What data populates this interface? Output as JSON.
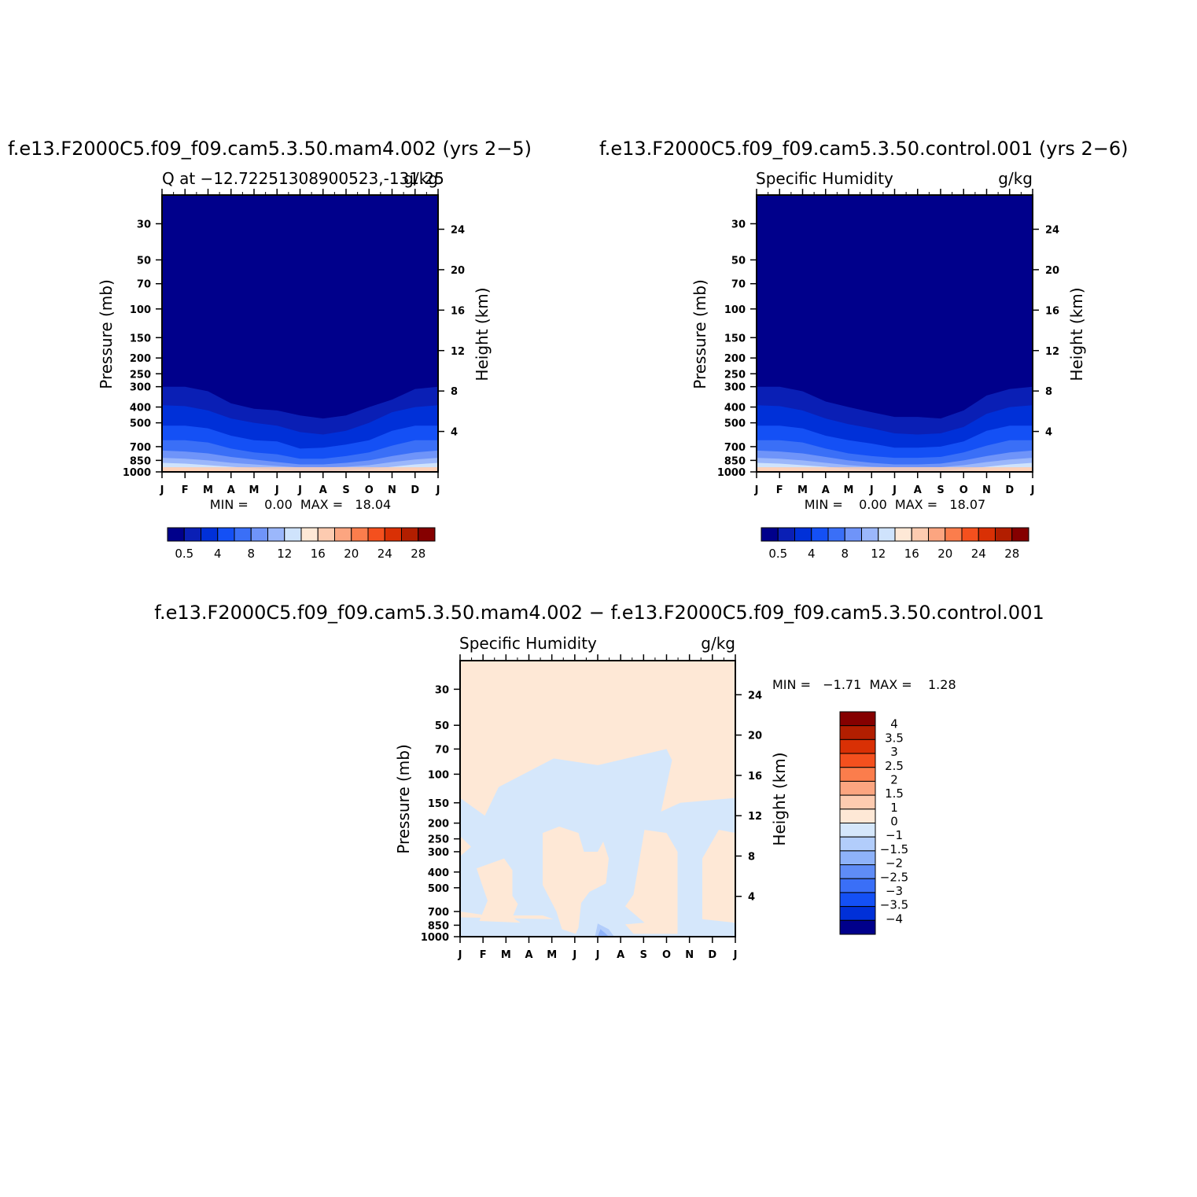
{
  "figure": {
    "top_left_title": "f.e13.F2000C5.f09_f09.cam5.3.50.mam4.002 (yrs 2−5)",
    "top_right_title": "f.e13.F2000C5.f09_f09.cam5.3.50.control.001 (yrs 2−6)",
    "bottom_title": "f.e13.F2000C5.f09_f09.cam5.3.50.mam4.002 − f.e13.F2000C5.f09_f09.cam5.3.50.control.001"
  },
  "panels": {
    "left": {
      "left_string": "Q at −12.72251308900523,-131.25",
      "right_string": "g/kg",
      "ylabel": "Pressure (mb)",
      "y2label": "Height (km)",
      "stats": "MIN =    0.00  MAX =   18.04"
    },
    "right": {
      "left_string": "Specific Humidity",
      "right_string": "g/kg",
      "ylabel": "Pressure (mb)",
      "y2label": "Height (km)",
      "stats": "MIN =    0.00  MAX =   18.07"
    },
    "diff": {
      "left_string": "Specific Humidity",
      "right_string": "g/kg",
      "ylabel": "Pressure (mb)",
      "y2label": "Height (km)",
      "stats": "MIN =   −1.71  MAX =    1.28"
    }
  },
  "chart_data": [
    {
      "type": "heatmap",
      "title": "f.e13.F2000C5.f09_f09.cam5.3.50.mam4.002 (yrs 2−5)",
      "subtitle_left": "Q at −12.72251308900523,-131.25",
      "subtitle_right": "g/kg",
      "xlabel": "",
      "ylabel": "Pressure (mb)",
      "y2label": "Height (km)",
      "x_ticks": [
        "J",
        "F",
        "M",
        "A",
        "M",
        "J",
        "J",
        "A",
        "S",
        "O",
        "N",
        "D",
        "J"
      ],
      "y_ticks": [
        30,
        50,
        70,
        100,
        150,
        200,
        250,
        300,
        400,
        500,
        700,
        850,
        1000
      ],
      "y2_ticks": [
        4,
        8,
        12,
        16,
        20,
        24
      ],
      "ylim": [
        1000,
        20
      ],
      "min": 0.0,
      "max": 18.04,
      "colorbar": {
        "labels": [
          "0.5",
          "4",
          "8",
          "12",
          "16",
          "20",
          "24",
          "28"
        ],
        "colors": [
          "#00008b",
          "#0a1fb5",
          "#0030d8",
          "#1450f5",
          "#3a6ff7",
          "#6f94f9",
          "#9bb7fb",
          "#cfe3fc",
          "#fee8d6",
          "#fdcbb0",
          "#fca580",
          "#fb7d4c",
          "#f4501e",
          "#d93005",
          "#b21e00",
          "#850000"
        ]
      },
      "contour_levels": [
        0.5,
        2,
        4,
        6,
        8,
        10,
        12,
        14
      ],
      "field_note": "isobar pressure (mb) of each specific humidity level by month, J..J",
      "level_pressure": {
        "0.5": [
          300,
          300,
          320,
          380,
          410,
          420,
          450,
          470,
          450,
          400,
          360,
          310,
          300
        ],
        "2": [
          390,
          395,
          420,
          470,
          500,
          520,
          570,
          590,
          560,
          500,
          430,
          400,
          390
        ],
        "4": [
          520,
          520,
          540,
          600,
          640,
          650,
          720,
          710,
          680,
          640,
          560,
          520,
          520
        ],
        "6": [
          640,
          640,
          660,
          720,
          760,
          780,
          830,
          830,
          800,
          760,
          690,
          640,
          640
        ],
        "8": [
          740,
          750,
          770,
          810,
          840,
          870,
          900,
          900,
          880,
          850,
          800,
          760,
          740
        ],
        "10": [
          820,
          830,
          850,
          880,
          900,
          920,
          940,
          940,
          930,
          910,
          870,
          840,
          820
        ],
        "12": [
          880,
          890,
          910,
          930,
          950,
          970,
          985,
          985,
          975,
          960,
          930,
          900,
          880
        ],
        "14": [
          940,
          945,
          955,
          970,
          985,
          1000,
          1000,
          1000,
          1000,
          990,
          965,
          950,
          940
        ]
      }
    },
    {
      "type": "heatmap",
      "title": "f.e13.F2000C5.f09_f09.cam5.3.50.control.001 (yrs 2−6)",
      "subtitle_left": "Specific Humidity",
      "subtitle_right": "g/kg",
      "xlabel": "",
      "ylabel": "Pressure (mb)",
      "y2label": "Height (km)",
      "x_ticks": [
        "J",
        "F",
        "M",
        "A",
        "M",
        "J",
        "J",
        "A",
        "S",
        "O",
        "N",
        "D",
        "J"
      ],
      "y_ticks": [
        30,
        50,
        70,
        100,
        150,
        200,
        250,
        300,
        400,
        500,
        700,
        850,
        1000
      ],
      "y2_ticks": [
        4,
        8,
        12,
        16,
        20,
        24
      ],
      "ylim": [
        1000,
        20
      ],
      "min": 0.0,
      "max": 18.07,
      "colorbar": {
        "labels": [
          "0.5",
          "4",
          "8",
          "12",
          "16",
          "20",
          "24",
          "28"
        ],
        "colors": [
          "#00008b",
          "#0a1fb5",
          "#0030d8",
          "#1450f5",
          "#3a6ff7",
          "#6f94f9",
          "#9bb7fb",
          "#cfe3fc",
          "#fee8d6",
          "#fdcbb0",
          "#fca580",
          "#fb7d4c",
          "#f4501e",
          "#d93005",
          "#b21e00",
          "#850000"
        ]
      },
      "contour_levels": [
        0.5,
        2,
        4,
        6,
        8,
        10,
        12,
        14
      ],
      "level_pressure": {
        "0.5": [
          300,
          300,
          320,
          370,
          400,
          430,
          460,
          460,
          470,
          420,
          340,
          310,
          300
        ],
        "2": [
          390,
          395,
          420,
          470,
          510,
          540,
          580,
          590,
          580,
          530,
          440,
          400,
          390
        ],
        "4": [
          520,
          520,
          540,
          600,
          640,
          670,
          710,
          710,
          700,
          650,
          560,
          520,
          520
        ],
        "6": [
          640,
          640,
          660,
          720,
          770,
          800,
          820,
          820,
          810,
          760,
          690,
          640,
          640
        ],
        "8": [
          740,
          750,
          770,
          810,
          850,
          880,
          900,
          900,
          890,
          850,
          800,
          760,
          740
        ],
        "10": [
          820,
          830,
          850,
          880,
          910,
          930,
          940,
          940,
          935,
          910,
          870,
          840,
          820
        ],
        "12": [
          880,
          890,
          910,
          930,
          960,
          975,
          985,
          985,
          980,
          960,
          930,
          900,
          880
        ],
        "14": [
          940,
          945,
          955,
          970,
          990,
          1000,
          1000,
          1000,
          1000,
          995,
          965,
          950,
          940
        ]
      }
    },
    {
      "type": "heatmap",
      "title": "f.e13.F2000C5.f09_f09.cam5.3.50.mam4.002 − f.e13.F2000C5.f09_f09.cam5.3.50.control.001",
      "subtitle_left": "Specific Humidity",
      "subtitle_right": "g/kg",
      "xlabel": "",
      "ylabel": "Pressure (mb)",
      "y2label": "Height (km)",
      "x_ticks": [
        "J",
        "F",
        "M",
        "A",
        "M",
        "J",
        "J",
        "A",
        "S",
        "O",
        "N",
        "D",
        "J"
      ],
      "y_ticks": [
        30,
        50,
        70,
        100,
        150,
        200,
        250,
        300,
        400,
        500,
        700,
        850,
        1000
      ],
      "y2_ticks": [
        4,
        8,
        12,
        16,
        20,
        24
      ],
      "ylim": [
        1000,
        20
      ],
      "min": -1.71,
      "max": 1.28,
      "colorbar": {
        "labels": [
          "4",
          "3.5",
          "3",
          "2.5",
          "2",
          "1.5",
          "1",
          "0",
          "−1",
          "−1.5",
          "−2",
          "−2.5",
          "−3",
          "−3.5",
          "−4"
        ],
        "colors": [
          "#850000",
          "#b21e00",
          "#d93005",
          "#f4501e",
          "#fb7d4c",
          "#fca580",
          "#fdcbb0",
          "#fee8d6",
          "#d5e7fb",
          "#b2cdfb",
          "#8eb2f9",
          "#5f8cf6",
          "#3a6ff7",
          "#1450f5",
          "#0030d8",
          "#00008b"
        ]
      },
      "regions": [
        {
          "value": "0 to 1",
          "color": "#fee8d6",
          "description": "background above ~100 mb and mid-level tongues"
        },
        {
          "value": "−1 to 0",
          "color": "#d5e7fb",
          "description": "broad band 100–1000 mb"
        },
        {
          "value": "−1.5 to −1",
          "color": "#b2cdfb",
          "description": "small near-surface patch in July"
        },
        {
          "value": "−2 to −1.5",
          "color": "#8eb2f9",
          "description": "minimum near 1000 mb in July"
        }
      ]
    }
  ]
}
